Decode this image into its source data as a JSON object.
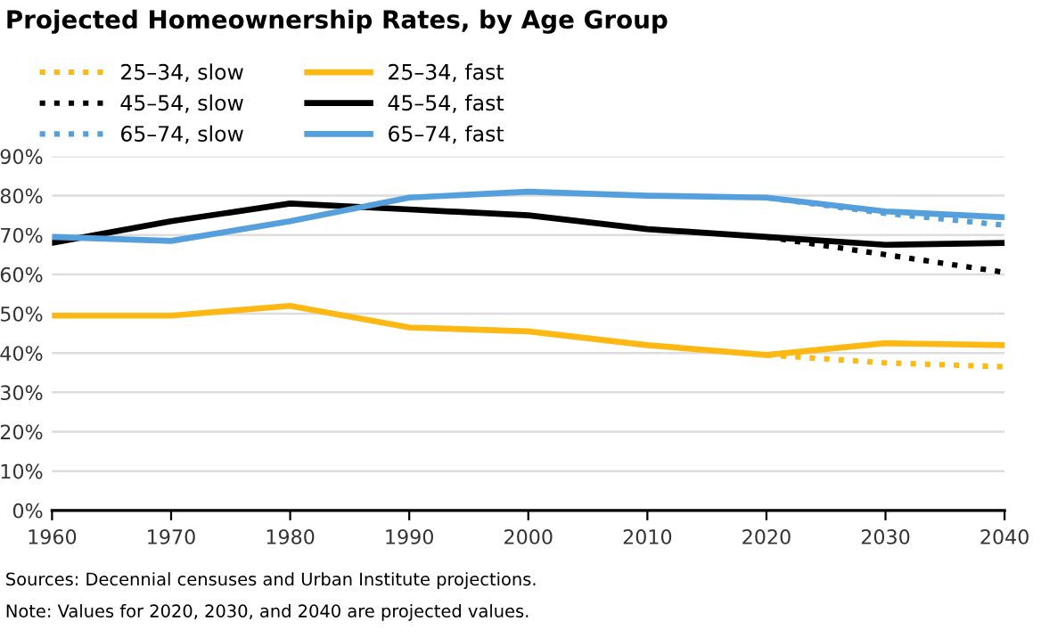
{
  "chart_data": {
    "type": "line",
    "title": "Projected Homeownership Rates, by Age Group",
    "x": [
      1960,
      1970,
      1980,
      1990,
      2000,
      2010,
      2020,
      2030,
      2040
    ],
    "series": [
      {
        "name": "25–34, slow",
        "color": "#fdb813",
        "line_style": "dotted",
        "x": [
          2020,
          2030,
          2040
        ],
        "values": [
          39.5,
          37.5,
          36.5
        ]
      },
      {
        "name": "45–54, slow",
        "color": "#000000",
        "line_style": "dotted",
        "x": [
          2020,
          2030,
          2040
        ],
        "values": [
          69.5,
          65,
          60.5
        ]
      },
      {
        "name": "65–74, slow",
        "color": "#55a0dc",
        "line_style": "dotted",
        "x": [
          2020,
          2030,
          2040
        ],
        "values": [
          79.5,
          75.5,
          72.5
        ]
      },
      {
        "name": "25–34, fast",
        "color": "#fdb813",
        "line_style": "solid",
        "values": [
          49.5,
          49.5,
          52,
          46.5,
          45.5,
          42,
          39.5,
          42.5,
          42
        ]
      },
      {
        "name": "45–54, fast",
        "color": "#000000",
        "line_style": "solid",
        "values": [
          68,
          73.5,
          78,
          76.5,
          75,
          71.5,
          69.5,
          67.5,
          68
        ]
      },
      {
        "name": "65–74, fast",
        "color": "#55a0dc",
        "line_style": "solid",
        "values": [
          69.5,
          68.5,
          73.5,
          79.5,
          81,
          80,
          79.5,
          76,
          74.5
        ]
      }
    ],
    "xlim": [
      1960,
      2040
    ],
    "xticks": [
      1960,
      1970,
      1980,
      1990,
      2000,
      2010,
      2020,
      2030,
      2040
    ],
    "ylim": [
      0,
      90
    ],
    "yticks": [
      {
        "value": 0,
        "label": "0%"
      },
      {
        "value": 10,
        "label": "10%"
      },
      {
        "value": 20,
        "label": "20%"
      },
      {
        "value": 30,
        "label": "30%"
      },
      {
        "value": 40,
        "label": "40%"
      },
      {
        "value": 50,
        "label": "50%"
      },
      {
        "value": 60,
        "label": "60%"
      },
      {
        "value": 70,
        "label": "70%"
      },
      {
        "value": 80,
        "label": "80%"
      },
      {
        "value": 90,
        "label": "90%"
      }
    ],
    "grid": "y",
    "legend": "top left",
    "marker": "none",
    "annotations": [
      "Sources: Decennial censuses and Urban Institute projections.",
      "Note: Values for 2020, 2030, and 2040 are projected values."
    ]
  }
}
